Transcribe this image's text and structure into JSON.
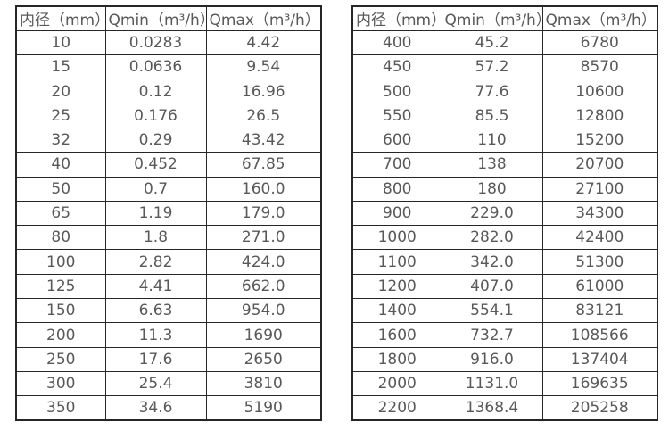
{
  "colors": {
    "text": "#595959",
    "border": "#262626",
    "background": "#ffffff"
  },
  "tables": [
    {
      "name": "flow-spec-small-diameters",
      "headers": [
        "内径（mm）",
        "Qmin（m³/h）",
        "Qmax（m³/h）"
      ],
      "rows": [
        [
          "10",
          "0.0283",
          "4.42"
        ],
        [
          "15",
          "0.0636",
          "9.54"
        ],
        [
          "20",
          "0.12",
          "16.96"
        ],
        [
          "25",
          "0.176",
          "26.5"
        ],
        [
          "32",
          "0.29",
          "43.42"
        ],
        [
          "40",
          "0.452",
          "67.85"
        ],
        [
          "50",
          "0.7",
          "160.0"
        ],
        [
          "65",
          "1.19",
          "179.0"
        ],
        [
          "80",
          "1.8",
          "271.0"
        ],
        [
          "100",
          "2.82",
          "424.0"
        ],
        [
          "125",
          "4.41",
          "662.0"
        ],
        [
          "150",
          "6.63",
          "954.0"
        ],
        [
          "200",
          "11.3",
          "1690"
        ],
        [
          "250",
          "17.6",
          "2650"
        ],
        [
          "300",
          "25.4",
          "3810"
        ],
        [
          "350",
          "34.6",
          "5190"
        ]
      ]
    },
    {
      "name": "flow-spec-large-diameters",
      "headers": [
        "内径（mm）",
        "Qmin（m³/h）",
        "Qmax（m³/h）"
      ],
      "rows": [
        [
          "400",
          "45.2",
          "6780"
        ],
        [
          "450",
          "57.2",
          "8570"
        ],
        [
          "500",
          "77.6",
          "10600"
        ],
        [
          "550",
          "85.5",
          "12800"
        ],
        [
          "600",
          "110",
          "15200"
        ],
        [
          "700",
          "138",
          "20700"
        ],
        [
          "800",
          "180",
          "27100"
        ],
        [
          "900",
          "229.0",
          "34300"
        ],
        [
          "1000",
          "282.0",
          "42400"
        ],
        [
          "1100",
          "342.0",
          "51300"
        ],
        [
          "1200",
          "407.0",
          "61000"
        ],
        [
          "1400",
          "554.1",
          "83121"
        ],
        [
          "1600",
          "732.7",
          "108566"
        ],
        [
          "1800",
          "916.0",
          "137404"
        ],
        [
          "2000",
          "1131.0",
          "169635"
        ],
        [
          "2200",
          "1368.4",
          "205258"
        ]
      ]
    }
  ]
}
